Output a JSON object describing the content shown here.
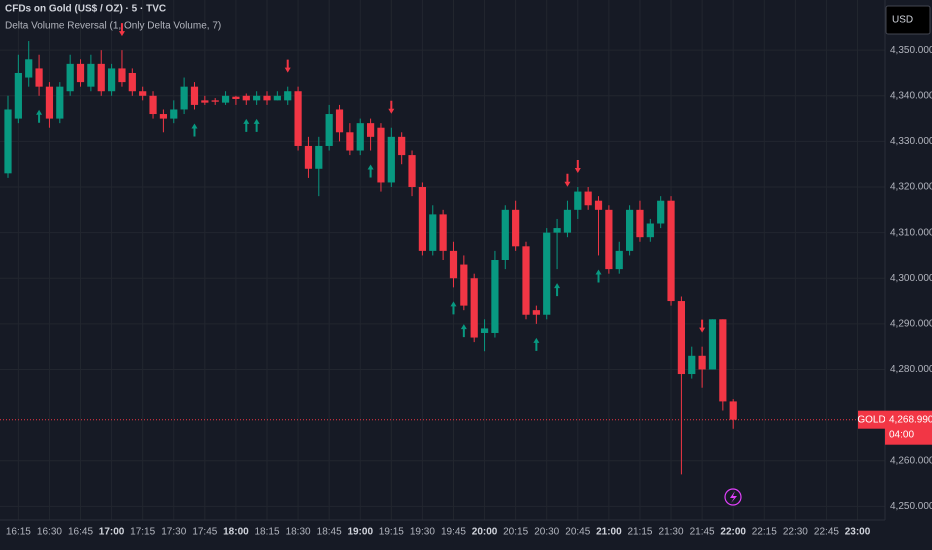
{
  "chart_data": {
    "type": "candlestick",
    "title": "CFDs on Gold (US$ / OZ) · 5 · TVC",
    "indicator": "Delta Volume Reversal (1, Only Delta Volume, 7)",
    "currency": "USD",
    "up_color": "#089981",
    "down_color": "#f23645",
    "categories": [
      null,
      "16:15",
      null,
      null,
      "16:30",
      null,
      null,
      "16:45",
      null,
      null,
      "17:00",
      null,
      null,
      "17:15",
      null,
      null,
      "17:30",
      null,
      null,
      "17:45",
      null,
      null,
      "18:00",
      null,
      null,
      "18:15",
      null,
      null,
      "18:30",
      null,
      null,
      "18:45",
      null,
      null,
      "19:00",
      null,
      null,
      "19:15",
      null,
      null,
      "19:30",
      null,
      null,
      "19:45",
      null,
      null,
      "20:00",
      null,
      null,
      "20:15",
      null,
      null,
      "20:30",
      null,
      null,
      "20:45",
      null,
      null,
      "21:00",
      null,
      null,
      "21:15",
      null,
      null,
      "21:30",
      null,
      null,
      "21:45",
      null,
      null,
      "22:00",
      null,
      null,
      "22:15",
      null,
      null,
      "22:30",
      null,
      null,
      "22:45",
      null,
      null,
      "23:00"
    ],
    "open": [
      4323,
      4335,
      4344,
      4346,
      4342,
      4335,
      4341,
      4347,
      4342,
      4347,
      4341,
      4346,
      4345,
      4341,
      4340,
      4336,
      4335,
      4337,
      4342,
      4339,
      4339,
      4338.5,
      4339.8,
      4340,
      4339,
      4340,
      4339,
      4339,
      4341,
      4329,
      4324,
      4329,
      4337,
      4332,
      4328,
      4334,
      4333,
      4321,
      4331,
      4327,
      4320,
      4306,
      4314,
      4306,
      4303,
      4300,
      4288,
      4288,
      4304,
      4315,
      4307,
      4293,
      4292,
      4310,
      4310,
      4315,
      4319,
      4317,
      4315,
      4302,
      4306,
      4315,
      4309,
      4312,
      4317,
      4295,
      4279,
      4283,
      4280,
      4291,
      4273,
      null,
      null,
      null,
      null,
      null,
      null,
      null,
      null,
      null,
      null,
      null,
      null
    ],
    "high": [
      4340,
      4349,
      4352,
      4349,
      4343,
      4343,
      4349,
      4348,
      4349,
      4350,
      4347,
      4350,
      4346,
      4342,
      4341,
      4337,
      4339,
      4344,
      4343,
      4340,
      4339.5,
      4341,
      4340,
      4340.5,
      4341,
      4341,
      4341,
      4342,
      4342,
      4331,
      4331,
      4338,
      4338,
      4334,
      4335,
      4335,
      4334,
      4333,
      4332,
      4328,
      4321,
      4316,
      4315,
      4308,
      4305,
      4301,
      4291,
      4306,
      4316,
      4317,
      4308,
      4294,
      4311,
      4313,
      4317,
      4320,
      4320,
      4318,
      4316,
      4308,
      4316,
      4317,
      4313,
      4318,
      4318,
      4296,
      4285,
      4285,
      4291,
      4291,
      4273.5,
      null,
      null,
      null,
      null,
      null,
      null,
      null,
      null,
      null,
      null,
      null,
      null
    ],
    "low": [
      4322,
      4334,
      4342,
      4340,
      4333,
      4334,
      4340,
      4342,
      4341,
      4340,
      4340,
      4342,
      4340,
      4339,
      4335,
      4332,
      4334,
      4336,
      4337,
      4338,
      4338,
      4338,
      4338,
      4338,
      4338,
      4338,
      4339,
      4338,
      4328,
      4322,
      4318,
      4328,
      4330,
      4327,
      4327,
      4328,
      4319,
      4320,
      4325,
      4318,
      4305,
      4305,
      4304,
      4298,
      4293,
      4286,
      4284,
      4287,
      4302,
      4306,
      4291,
      4290,
      4291,
      4302,
      4309,
      4313,
      4315,
      4305,
      4301,
      4301,
      4305,
      4308,
      4308,
      4311,
      4294,
      4257,
      4278,
      4276,
      4280,
      4271,
      4267,
      null,
      null,
      null,
      null,
      null,
      null,
      null,
      null,
      null,
      null,
      null,
      null
    ],
    "close": [
      4337,
      4345,
      4348,
      4342,
      4335,
      4342,
      4347,
      4343,
      4347,
      4341,
      4346,
      4343,
      4341,
      4340,
      4336,
      4335,
      4337,
      4342,
      4338,
      4338.5,
      4338.7,
      4340,
      4339.3,
      4339,
      4340,
      4339,
      4340,
      4341,
      4329,
      4324,
      4329,
      4336,
      4332,
      4328,
      4334,
      4331,
      4321,
      4331,
      4327,
      4320,
      4306,
      4314,
      4306,
      4300,
      4294,
      4287,
      4289,
      4304,
      4315,
      4307,
      4292,
      4292,
      4310,
      4311,
      4315,
      4319,
      4316,
      4315,
      4302,
      4306,
      4315,
      4309,
      4312,
      4317,
      4295,
      4279,
      4283,
      4280,
      4291,
      4273,
      4268.99,
      null,
      null,
      null,
      null,
      null,
      null,
      null,
      null,
      null,
      null,
      null,
      null
    ],
    "signals_up": [
      3,
      18,
      23,
      24,
      35,
      43,
      44,
      51,
      53,
      57
    ],
    "signals_down": [
      11,
      27,
      37,
      54,
      55,
      67
    ],
    "ylim": [
      4247,
      4361
    ],
    "yticks": [
      {
        "value": 4250,
        "label": "4,250.000"
      },
      {
        "value": 4260,
        "label": "4,260.000"
      },
      {
        "value": 4280,
        "label": "4,280.000"
      },
      {
        "value": 4290,
        "label": "4,290.000"
      },
      {
        "value": 4300,
        "label": "4,300.000"
      },
      {
        "value": 4310,
        "label": "4,310.000"
      },
      {
        "value": 4320,
        "label": "4,320.000"
      },
      {
        "value": 4330,
        "label": "4,330.000"
      },
      {
        "value": 4340,
        "label": "4,340.000"
      },
      {
        "value": 4350,
        "label": "4,350.000"
      }
    ],
    "grid": true,
    "last_price": {
      "symbol": "GOLD",
      "value": 4268.99,
      "label": "4,268.990",
      "countdown": "04:00"
    }
  }
}
